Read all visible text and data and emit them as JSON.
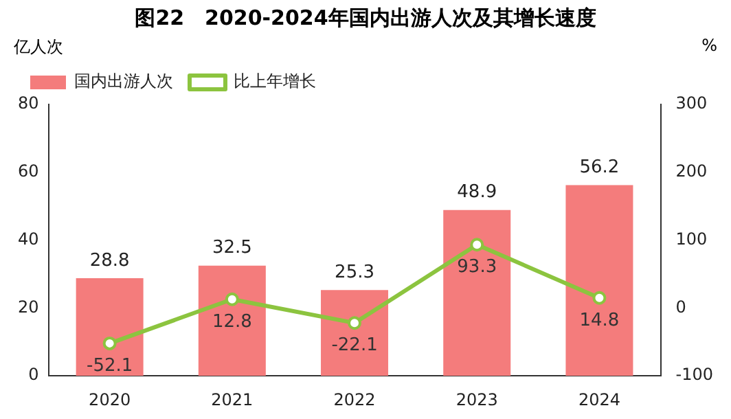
{
  "chart_data": {
    "type": "bar",
    "title": "图22　2020-2024年国内出游人次及其增长速度",
    "ylabel": "亿人次",
    "y2label": "%",
    "categories": [
      "2020",
      "2021",
      "2022",
      "2023",
      "2024"
    ],
    "series": [
      {
        "name": "国内出游人次",
        "color": "#f47c7c",
        "values": [
          28.8,
          32.5,
          25.3,
          48.9,
          56.2
        ]
      },
      {
        "name": "比上年增长",
        "type": "line",
        "axis": "y2",
        "color": "#8cc43f",
        "values": [
          -52.1,
          12.8,
          -22.1,
          93.3,
          14.8
        ]
      }
    ],
    "ylim": [
      0,
      80
    ],
    "yticks": [
      0,
      20,
      40,
      60,
      80
    ],
    "y2lim": [
      -100,
      300
    ],
    "y2ticks": [
      -100,
      0,
      100,
      200,
      300
    ],
    "data_labels": true,
    "legend": "top left",
    "grid": false,
    "marker": "circle",
    "line_style": "solid"
  }
}
